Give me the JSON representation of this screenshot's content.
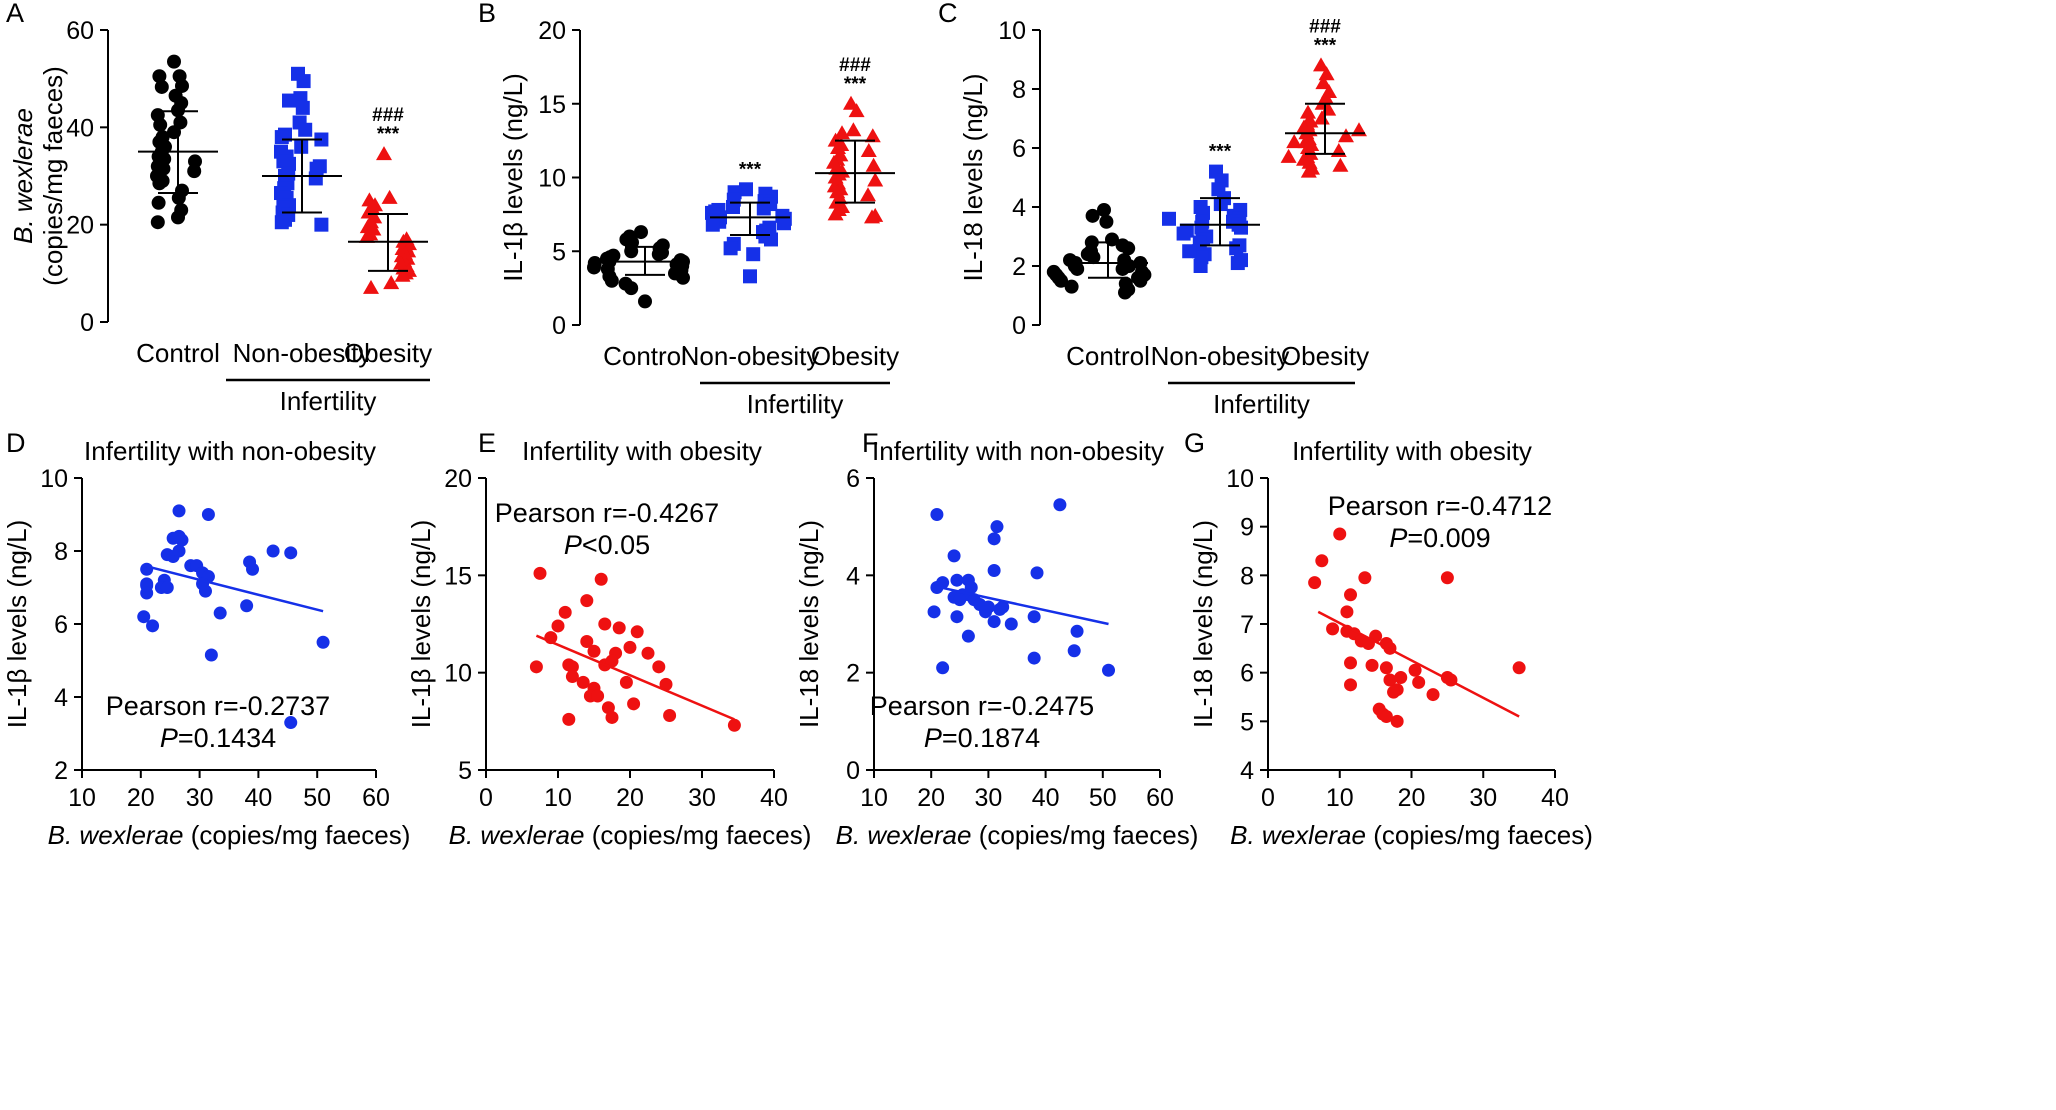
{
  "chart_data": [
    {
      "panel": "A",
      "type": "scatter",
      "ylabel_italic": "B. wexlerae",
      "ylabel": "(copies/mg faeces)",
      "ylim": [
        0,
        60
      ],
      "yticks": [
        "0",
        "20",
        "40",
        "60"
      ],
      "categories": [
        "Control",
        "Non-obesity",
        "Obesity"
      ],
      "group_label": "Infertility",
      "colors": [
        "#000000",
        "#1530e8",
        "#ee1111"
      ],
      "markers": [
        "circle",
        "square",
        "triangle"
      ],
      "series": [
        {
          "name": "Control",
          "mean": 35,
          "sd_low": 26.5,
          "sd_high": 43.3,
          "values": [
            53.5,
            50.5,
            50.5,
            48.5,
            48.3,
            46.5,
            45,
            43.5,
            42.5,
            41,
            40.5,
            39,
            38,
            37,
            36,
            35,
            34,
            33.5,
            33,
            32,
            31.5,
            31,
            30,
            29,
            28.5,
            27,
            25.5,
            24.5,
            23,
            21.5,
            20.5
          ]
        },
        {
          "name": "Non-obesity",
          "mean": 30,
          "sd_low": 22.5,
          "sd_high": 37.5,
          "values": [
            51,
            49.5,
            46,
            45.5,
            44,
            41,
            39.5,
            38.5,
            38,
            37.5,
            36,
            35,
            34,
            33,
            32.5,
            32,
            31.5,
            30.5,
            30,
            29.5,
            28.5,
            27.5,
            26.5,
            25.5,
            25,
            24,
            23.5,
            22.5,
            22,
            21,
            20.5,
            20
          ]
        },
        {
          "name": "Obesity",
          "mean": 16.5,
          "sd_low": 10.5,
          "sd_high": 22.2,
          "values": [
            34.5,
            25.5,
            25,
            24,
            23.5,
            22.5,
            21.5,
            20.5,
            19.5,
            19,
            18,
            17.5,
            17,
            16.5,
            16,
            15.5,
            15,
            14.5,
            14,
            13.5,
            13,
            12.5,
            12,
            11.5,
            11,
            10.5,
            10,
            9.5,
            8,
            7
          ]
        }
      ],
      "annotations": [
        {
          "category": "Obesity",
          "line1": "###",
          "line2": "***"
        }
      ]
    },
    {
      "panel": "B",
      "type": "scatter",
      "ylabel": "IL-1β levels (ng/L)",
      "ylim": [
        0,
        20
      ],
      "yticks": [
        "0",
        "5",
        "10",
        "15",
        "20"
      ],
      "categories": [
        "Control",
        "Non-obesity",
        "Obesity"
      ],
      "group_label": "Infertility",
      "colors": [
        "#000000",
        "#1530e8",
        "#ee1111"
      ],
      "markers": [
        "circle",
        "square",
        "triangle"
      ],
      "series": [
        {
          "name": "Control",
          "mean": 4.3,
          "sd_low": 3.4,
          "sd_high": 5.3,
          "values": [
            6.3,
            6,
            5.8,
            5.6,
            5.4,
            5.2,
            5,
            4.9,
            4.8,
            4.7,
            4.6,
            4.5,
            4.4,
            4.3,
            4.3,
            4.2,
            4.1,
            4,
            3.9,
            3.8,
            3.7,
            3.6,
            3.5,
            3.4,
            3.3,
            3.2,
            3,
            2.8,
            2.5,
            1.6
          ]
        },
        {
          "name": "Non-obesity",
          "mean": 7.3,
          "sd_low": 6.1,
          "sd_high": 8.3,
          "values": [
            9.2,
            9,
            8.9,
            8.7,
            8.5,
            8.4,
            8.2,
            8,
            7.9,
            7.8,
            7.7,
            7.6,
            7.5,
            7.4,
            7.3,
            7.2,
            7.1,
            7,
            6.9,
            6.8,
            6.6,
            6.4,
            6.3,
            6.1,
            6,
            5.8,
            5.5,
            5.2,
            4.8,
            3.3
          ]
        },
        {
          "name": "Obesity",
          "mean": 10.3,
          "sd_low": 8.3,
          "sd_high": 12.5,
          "values": [
            15,
            14.5,
            13.2,
            13,
            12.8,
            12.5,
            12.2,
            12,
            11.8,
            11.5,
            11.2,
            11,
            10.8,
            10.6,
            10.4,
            10.2,
            10,
            9.8,
            9.6,
            9.4,
            9.2,
            9,
            8.8,
            8.6,
            8.3,
            8,
            7.8,
            7.5,
            7.4,
            7.3
          ]
        }
      ],
      "annotations": [
        {
          "category": "Non-obesity",
          "line1": "",
          "line2": "***"
        },
        {
          "category": "Obesity",
          "line1": "###",
          "line2": "***"
        }
      ]
    },
    {
      "panel": "C",
      "type": "scatter",
      "ylabel": "IL-18 levels (ng/L)",
      "ylim": [
        0,
        10
      ],
      "yticks": [
        "0",
        "2",
        "4",
        "6",
        "8",
        "10"
      ],
      "categories": [
        "Control",
        "Non-obesity",
        "Obesity"
      ],
      "group_label": "Infertility",
      "colors": [
        "#000000",
        "#1530e8",
        "#ee1111"
      ],
      "markers": [
        "circle",
        "square",
        "triangle"
      ],
      "series": [
        {
          "name": "Control",
          "mean": 2.1,
          "sd_low": 1.6,
          "sd_high": 2.8,
          "values": [
            3.9,
            3.7,
            3.5,
            2.9,
            2.8,
            2.7,
            2.6,
            2.5,
            2.4,
            2.3,
            2.2,
            2.2,
            2.1,
            2.1,
            2,
            2,
            1.9,
            1.9,
            1.8,
            1.8,
            1.7,
            1.7,
            1.6,
            1.6,
            1.5,
            1.5,
            1.4,
            1.3,
            1.2,
            1.1
          ]
        },
        {
          "name": "Non-obesity",
          "mean": 3.4,
          "sd_low": 2.7,
          "sd_high": 4.3,
          "values": [
            5.2,
            4.9,
            4.6,
            4.3,
            4.1,
            4,
            3.9,
            3.8,
            3.7,
            3.6,
            3.5,
            3.5,
            3.4,
            3.3,
            3.3,
            3.2,
            3.1,
            3,
            2.9,
            2.8,
            2.7,
            2.6,
            2.5,
            2.4,
            2.3,
            2.2,
            2.1,
            2,
            2.5,
            3.6
          ]
        },
        {
          "name": "Obesity",
          "mean": 6.5,
          "sd_low": 5.8,
          "sd_high": 7.5,
          "values": [
            8.8,
            8.5,
            8.2,
            7.9,
            7.7,
            7.5,
            7.3,
            7.2,
            7,
            6.9,
            6.8,
            6.7,
            6.6,
            6.5,
            6.4,
            6.3,
            6.2,
            6.1,
            6,
            5.9,
            5.8,
            5.7,
            5.6,
            5.5,
            5.4,
            5.3,
            5.2,
            5.7,
            6.2,
            6.6
          ]
        }
      ],
      "annotations": [
        {
          "category": "Non-obesity",
          "line1": "",
          "line2": "***"
        },
        {
          "category": "Obesity",
          "line1": "###",
          "line2": "***"
        }
      ]
    },
    {
      "panel": "D",
      "type": "scatter",
      "title": "Infertility with non-obesity",
      "xlabel_italic": "B. wexlerae",
      "xlabel": " (copies/mg faeces)",
      "ylabel": "IL-1β levels (ng/L)",
      "xlim": [
        10,
        60
      ],
      "ylim": [
        2,
        10
      ],
      "xticks": [
        "10",
        "20",
        "30",
        "40",
        "50",
        "60"
      ],
      "yticks": [
        "2",
        "4",
        "6",
        "8",
        "10"
      ],
      "color": "#1530e8",
      "stat_line1": "Pearson r=-0.2737",
      "stat_p_italic": "P",
      "stat_p_value": "=0.1434",
      "fit": {
        "x": [
          20.5,
          51
        ],
        "y": [
          7.6,
          6.35
        ]
      },
      "points": [
        [
          26.5,
          9.1
        ],
        [
          31.5,
          9
        ],
        [
          42.5,
          8
        ],
        [
          45.5,
          7.95
        ],
        [
          25.5,
          8.35
        ],
        [
          26.5,
          8.4
        ],
        [
          27,
          8.3
        ],
        [
          24.5,
          7.9
        ],
        [
          25.5,
          7.85
        ],
        [
          26.5,
          8
        ],
        [
          28.5,
          7.6
        ],
        [
          29.5,
          7.6
        ],
        [
          30.5,
          7.4
        ],
        [
          31.5,
          7.3
        ],
        [
          38.5,
          7.7
        ],
        [
          39,
          7.5
        ],
        [
          21,
          7.5
        ],
        [
          21,
          7.1
        ],
        [
          24,
          7.2
        ],
        [
          21,
          7.05
        ],
        [
          23.5,
          7
        ],
        [
          24.5,
          7
        ],
        [
          30.5,
          7.1
        ],
        [
          31,
          6.9
        ],
        [
          21,
          6.85
        ],
        [
          20.5,
          6.2
        ],
        [
          22,
          5.95
        ],
        [
          33.5,
          6.3
        ],
        [
          38,
          6.5
        ],
        [
          32,
          5.15
        ],
        [
          51,
          5.5
        ],
        [
          45.5,
          3.3
        ]
      ]
    },
    {
      "panel": "E",
      "type": "scatter",
      "title": "Infertility with obesity",
      "xlabel_italic": "B. wexlerae",
      "xlabel": " (copies/mg faeces)",
      "ylabel": "IL-1β levels (ng/L)",
      "xlim": [
        0,
        40
      ],
      "ylim": [
        5,
        20
      ],
      "xticks": [
        "0",
        "10",
        "20",
        "30",
        "40"
      ],
      "yticks": [
        "5",
        "10",
        "15",
        "20"
      ],
      "color": "#ee1111",
      "stat_line1": "Pearson r=-0.4267",
      "stat_p_italic": "P",
      "stat_p_value": "<0.05",
      "fit": {
        "x": [
          7,
          34.5
        ],
        "y": [
          11.9,
          7.6
        ]
      },
      "points": [
        [
          7.5,
          15.1
        ],
        [
          16,
          14.8
        ],
        [
          14,
          13.7
        ],
        [
          11,
          13.1
        ],
        [
          10,
          12.4
        ],
        [
          16.5,
          12.5
        ],
        [
          18.5,
          12.3
        ],
        [
          21,
          12.1
        ],
        [
          9,
          11.8
        ],
        [
          14,
          11.6
        ],
        [
          20,
          11.3
        ],
        [
          22.5,
          11
        ],
        [
          18,
          11
        ],
        [
          15,
          11.1
        ],
        [
          16.5,
          10.4
        ],
        [
          17.5,
          10.6
        ],
        [
          7,
          10.3
        ],
        [
          11.5,
          10.4
        ],
        [
          12,
          10.3
        ],
        [
          24,
          10.3
        ],
        [
          12,
          9.8
        ],
        [
          13.5,
          9.5
        ],
        [
          19.5,
          9.5
        ],
        [
          25,
          9.4
        ],
        [
          15,
          9.2
        ],
        [
          14.5,
          8.8
        ],
        [
          15.5,
          8.8
        ],
        [
          20.5,
          8.4
        ],
        [
          17,
          8.2
        ],
        [
          17.5,
          7.7
        ],
        [
          11.5,
          7.6
        ],
        [
          25.5,
          7.8
        ],
        [
          34.5,
          7.3
        ]
      ]
    },
    {
      "panel": "F",
      "type": "scatter",
      "title": "Infertility with non-obesity",
      "xlabel_italic": "B. wexlerae",
      "xlabel": " (copies/mg faeces)",
      "ylabel": "IL-18 levels (ng/L)",
      "xlim": [
        10,
        60
      ],
      "ylim": [
        0,
        6
      ],
      "xticks": [
        "10",
        "20",
        "30",
        "40",
        "50",
        "60"
      ],
      "yticks": [
        "0",
        "2",
        "4",
        "6"
      ],
      "color": "#1530e8",
      "stat_line1": "Pearson r=-0.2475",
      "stat_p_italic": "P",
      "stat_p_value": "=0.1874",
      "fit": {
        "x": [
          20.5,
          51
        ],
        "y": [
          3.78,
          3.0
        ]
      },
      "points": [
        [
          42.5,
          5.45
        ],
        [
          21,
          5.25
        ],
        [
          31.5,
          5
        ],
        [
          31,
          4.75
        ],
        [
          24,
          4.4
        ],
        [
          31,
          4.1
        ],
        [
          38.5,
          4.05
        ],
        [
          22,
          3.85
        ],
        [
          24.5,
          3.9
        ],
        [
          26.5,
          3.9
        ],
        [
          27,
          3.75
        ],
        [
          21,
          3.75
        ],
        [
          25.5,
          3.6
        ],
        [
          26.5,
          3.6
        ],
        [
          27.5,
          3.5
        ],
        [
          24,
          3.55
        ],
        [
          25,
          3.5
        ],
        [
          28.5,
          3.4
        ],
        [
          30,
          3.35
        ],
        [
          32,
          3.3
        ],
        [
          29.5,
          3.25
        ],
        [
          32.5,
          3.35
        ],
        [
          20.5,
          3.25
        ],
        [
          24.5,
          3.15
        ],
        [
          31,
          3.05
        ],
        [
          34,
          3
        ],
        [
          38,
          3.15
        ],
        [
          26.5,
          2.75
        ],
        [
          45.5,
          2.85
        ],
        [
          45,
          2.45
        ],
        [
          38,
          2.3
        ],
        [
          22,
          2.1
        ],
        [
          51,
          2.05
        ]
      ]
    },
    {
      "panel": "G",
      "type": "scatter",
      "title": "Infertility with obesity",
      "xlabel_italic": "B. wexlerae",
      "xlabel": " (copies/mg faeces)",
      "ylabel": "IL-18 levels (ng/L)",
      "xlim": [
        0,
        40
      ],
      "ylim": [
        4,
        10
      ],
      "xticks": [
        "0",
        "10",
        "20",
        "30",
        "40"
      ],
      "yticks": [
        "4",
        "5",
        "6",
        "7",
        "8",
        "9",
        "10"
      ],
      "color": "#ee1111",
      "stat_line1": "Pearson r=-0.4712",
      "stat_p_italic": "P",
      "stat_p_value": "=0.009",
      "fit": {
        "x": [
          7,
          35
        ],
        "y": [
          7.25,
          5.1
        ]
      },
      "points": [
        [
          10,
          8.85
        ],
        [
          7.5,
          8.3
        ],
        [
          13.5,
          7.95
        ],
        [
          25,
          7.95
        ],
        [
          6.5,
          7.85
        ],
        [
          11.5,
          7.6
        ],
        [
          11,
          7.25
        ],
        [
          9,
          6.9
        ],
        [
          11,
          6.85
        ],
        [
          12,
          6.8
        ],
        [
          15,
          6.75
        ],
        [
          13,
          6.65
        ],
        [
          14,
          6.6
        ],
        [
          16.5,
          6.6
        ],
        [
          17,
          6.5
        ],
        [
          11.5,
          6.2
        ],
        [
          14.5,
          6.15
        ],
        [
          16.5,
          6.1
        ],
        [
          20.5,
          6.05
        ],
        [
          17,
          5.85
        ],
        [
          18.5,
          5.9
        ],
        [
          25,
          5.9
        ],
        [
          25.5,
          5.85
        ],
        [
          35,
          6.1
        ],
        [
          21,
          5.8
        ],
        [
          18,
          5.65
        ],
        [
          17.5,
          5.6
        ],
        [
          23,
          5.55
        ],
        [
          11.5,
          5.75
        ],
        [
          15.5,
          5.25
        ],
        [
          16,
          5.15
        ],
        [
          18,
          5
        ],
        [
          16.5,
          5.1
        ]
      ]
    }
  ]
}
